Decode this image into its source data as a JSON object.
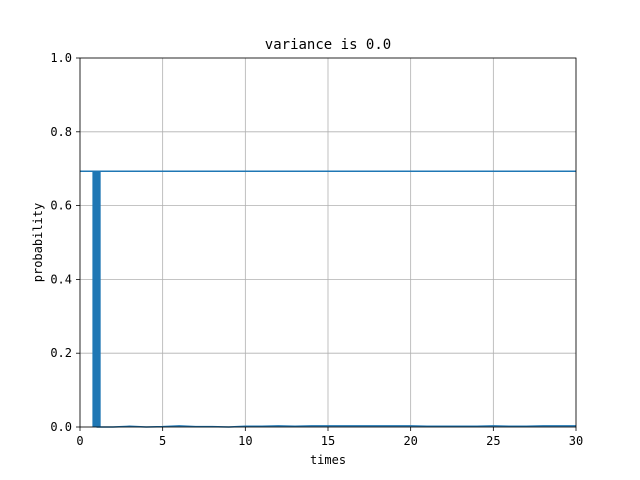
{
  "chart_data": {
    "type": "bar",
    "title": "variance is 0.0",
    "xlabel": "times",
    "ylabel": "probability",
    "xlim": [
      0,
      30
    ],
    "ylim": [
      0,
      1.0
    ],
    "xticks": [
      "0",
      "5",
      "10",
      "15",
      "20",
      "25",
      "30"
    ],
    "yticks": [
      "0.0",
      "0.2",
      "0.4",
      "0.6",
      "0.8",
      "1.0"
    ],
    "grid": true,
    "bar_color": "#1f77b4",
    "line_color": "#1f77b4",
    "bars": [
      {
        "x": 1,
        "value": 0.693
      }
    ],
    "hline": {
      "y": 0.693
    },
    "baseline_curve": {
      "x": [
        1,
        2,
        3,
        4,
        5,
        6,
        7,
        8,
        9,
        10,
        11,
        12,
        13,
        14,
        15,
        16,
        17,
        18,
        19,
        20,
        21,
        22,
        23,
        24,
        25,
        26,
        27,
        28,
        29,
        30
      ],
      "y": [
        0.0,
        0.0,
        0.002,
        0.0,
        0.001,
        0.003,
        0.001,
        0.001,
        0.0,
        0.002,
        0.002,
        0.003,
        0.002,
        0.003,
        0.003,
        0.003,
        0.003,
        0.003,
        0.003,
        0.003,
        0.002,
        0.002,
        0.002,
        0.002,
        0.003,
        0.002,
        0.002,
        0.003,
        0.003,
        0.003
      ]
    }
  }
}
